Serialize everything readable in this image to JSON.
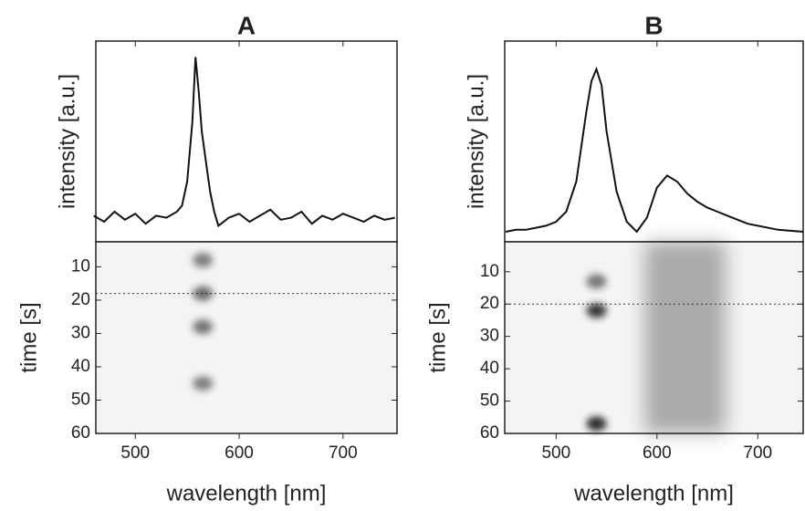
{
  "chart_data": [
    {
      "type": "line",
      "title": "A",
      "ylabel": "intensity [a.u.]",
      "color": "#111111",
      "x": [
        460,
        470,
        480,
        490,
        500,
        510,
        520,
        530,
        540,
        545,
        550,
        555,
        558,
        561,
        564,
        568,
        572,
        576,
        580,
        590,
        600,
        610,
        620,
        630,
        640,
        650,
        660,
        670,
        680,
        690,
        700,
        710,
        720,
        730,
        740,
        750
      ],
      "values": [
        0.13,
        0.1,
        0.15,
        0.11,
        0.14,
        0.09,
        0.13,
        0.12,
        0.15,
        0.18,
        0.3,
        0.6,
        0.92,
        0.75,
        0.55,
        0.4,
        0.25,
        0.15,
        0.08,
        0.12,
        0.14,
        0.1,
        0.13,
        0.16,
        0.11,
        0.12,
        0.15,
        0.09,
        0.13,
        0.11,
        0.14,
        0.12,
        0.1,
        0.13,
        0.11,
        0.12
      ],
      "xlim": [
        462,
        752
      ],
      "ylim": [
        0,
        1
      ]
    },
    {
      "type": "heatmap",
      "xlabel": "wavelength [nm]",
      "ylabel": "time [s]",
      "color": "#303030",
      "xlim": [
        462,
        752
      ],
      "ylim": [
        2.5,
        60
      ],
      "xticks": [
        500,
        600,
        700
      ],
      "yticks": [
        10,
        20,
        30,
        40,
        50,
        60
      ],
      "hline": 18,
      "spots": [
        {
          "x": 565,
          "y": 8,
          "intensity": 0.6
        },
        {
          "x": 565,
          "y": 18,
          "intensity": 0.7
        },
        {
          "x": 565,
          "y": 28,
          "intensity": 0.65
        },
        {
          "x": 565,
          "y": 45,
          "intensity": 0.6
        }
      ],
      "bands": []
    },
    {
      "type": "line",
      "title": "B",
      "ylabel": "intensity [a.u.]",
      "color": "#111111",
      "x": [
        450,
        460,
        470,
        480,
        490,
        500,
        510,
        520,
        530,
        535,
        540,
        545,
        550,
        560,
        570,
        580,
        590,
        600,
        610,
        620,
        630,
        640,
        650,
        660,
        670,
        680,
        690,
        700,
        720,
        745
      ],
      "values": [
        0.05,
        0.06,
        0.06,
        0.07,
        0.08,
        0.1,
        0.15,
        0.3,
        0.65,
        0.8,
        0.86,
        0.78,
        0.55,
        0.25,
        0.1,
        0.05,
        0.12,
        0.27,
        0.33,
        0.3,
        0.24,
        0.2,
        0.17,
        0.15,
        0.13,
        0.11,
        0.09,
        0.08,
        0.06,
        0.05
      ],
      "xlim": [
        449,
        745
      ],
      "ylim": [
        0,
        1
      ]
    },
    {
      "type": "heatmap",
      "xlabel": "wavelength [nm]",
      "ylabel": "time [s]",
      "color": "#202020",
      "xlim": [
        449,
        745
      ],
      "ylim": [
        0.75,
        60
      ],
      "xticks": [
        500,
        600,
        700
      ],
      "yticks": [
        10,
        20,
        30,
        40,
        50,
        60
      ],
      "hline": 20,
      "spots": [
        {
          "x": 540,
          "y": 13,
          "intensity": 0.6
        },
        {
          "x": 540,
          "y": 22,
          "intensity": 0.9
        },
        {
          "x": 540,
          "y": 57,
          "intensity": 0.95
        }
      ],
      "bands": [
        {
          "xrange": [
            588,
            668
          ],
          "intensity": 0.35
        }
      ]
    }
  ]
}
